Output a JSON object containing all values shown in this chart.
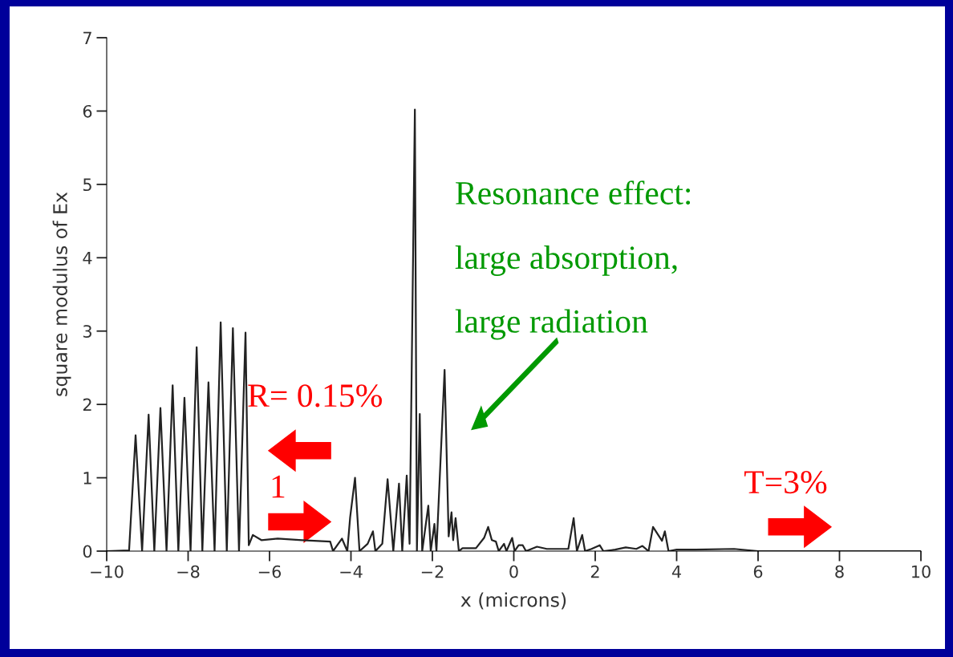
{
  "chart_data": {
    "type": "line",
    "xlabel": "x (microns)",
    "ylabel": "square modulus of Ex",
    "xlim": [
      -10,
      10
    ],
    "ylim": [
      0,
      7
    ],
    "xticks": [
      {
        "value": -10,
        "label": "−10"
      },
      {
        "value": -8,
        "label": "−8"
      },
      {
        "value": -6,
        "label": "−6"
      },
      {
        "value": -4,
        "label": "−4"
      },
      {
        "value": -2,
        "label": "−2"
      },
      0,
      2,
      4,
      6,
      8,
      10
    ],
    "yticks": [
      0,
      1,
      2,
      3,
      4,
      5,
      6,
      7
    ],
    "grid": false,
    "legend": false,
    "series": [
      {
        "color": "#222222",
        "x": [
          -10,
          -9.45,
          -9.29,
          -9.13,
          -8.97,
          -8.83,
          -8.68,
          -8.53,
          -8.38,
          -8.24,
          -8.09,
          -7.94,
          -7.79,
          -7.65,
          -7.5,
          -7.35,
          -7.2,
          -7.05,
          -6.9,
          -6.75,
          -6.59,
          -6.51,
          -6.41,
          -6.2,
          -5.8,
          -5.2,
          -4.51,
          -4.44,
          -4.22,
          -4.09,
          -4.02,
          -3.9,
          -3.79,
          -3.59,
          -3.46,
          -3.4,
          -3.23,
          -3.1,
          -2.96,
          -2.82,
          -2.74,
          -2.63,
          -2.56,
          -2.43,
          -2.38,
          -2.31,
          -2.25,
          -2.1,
          -2.04,
          -1.95,
          -1.9,
          -1.7,
          -1.6,
          -1.53,
          -1.49,
          -1.43,
          -1.35,
          -1.26,
          -0.93,
          -0.73,
          -0.63,
          -0.54,
          -0.44,
          -0.37,
          -0.24,
          -0.18,
          -0.04,
          0.02,
          0.12,
          0.22,
          0.3,
          0.57,
          0.81,
          1.34,
          1.47,
          1.55,
          1.68,
          1.75,
          1.91,
          2.11,
          2.2,
          2.49,
          2.75,
          3.01,
          3.16,
          3.31,
          3.42,
          3.64,
          3.71,
          3.8,
          4.0,
          4.46,
          5.41,
          6,
          10
        ],
        "values": [
          0,
          0.01,
          1.58,
          0,
          1.86,
          0,
          1.95,
          0,
          2.26,
          0,
          2.09,
          0,
          2.78,
          0,
          2.3,
          0,
          3.12,
          0,
          3.04,
          0,
          2.98,
          0.08,
          0.22,
          0.15,
          0.17,
          0.15,
          0.13,
          0,
          0.17,
          0,
          0.46,
          1.0,
          0,
          0.1,
          0.27,
          0,
          0.1,
          0.98,
          0,
          0.92,
          0,
          1.03,
          0.1,
          6.02,
          0,
          1.87,
          0,
          0.62,
          0,
          0.37,
          0,
          2.47,
          0.2,
          0.53,
          0.15,
          0.45,
          0,
          0.04,
          0.04,
          0.18,
          0.33,
          0.15,
          0.13,
          0,
          0.1,
          0,
          0.18,
          0,
          0.08,
          0.08,
          0,
          0.06,
          0.03,
          0.03,
          0.45,
          0,
          0.22,
          0,
          0.03,
          0.08,
          0,
          0.02,
          0.05,
          0.03,
          0.07,
          0,
          0.33,
          0.14,
          0.27,
          0,
          0.02,
          0.02,
          0.03,
          0,
          0
        ]
      }
    ],
    "annotations": [
      "Resonance effect:",
      "large absorption,",
      "large radiation",
      "R= 0.15%",
      "1",
      "T=3%"
    ]
  }
}
